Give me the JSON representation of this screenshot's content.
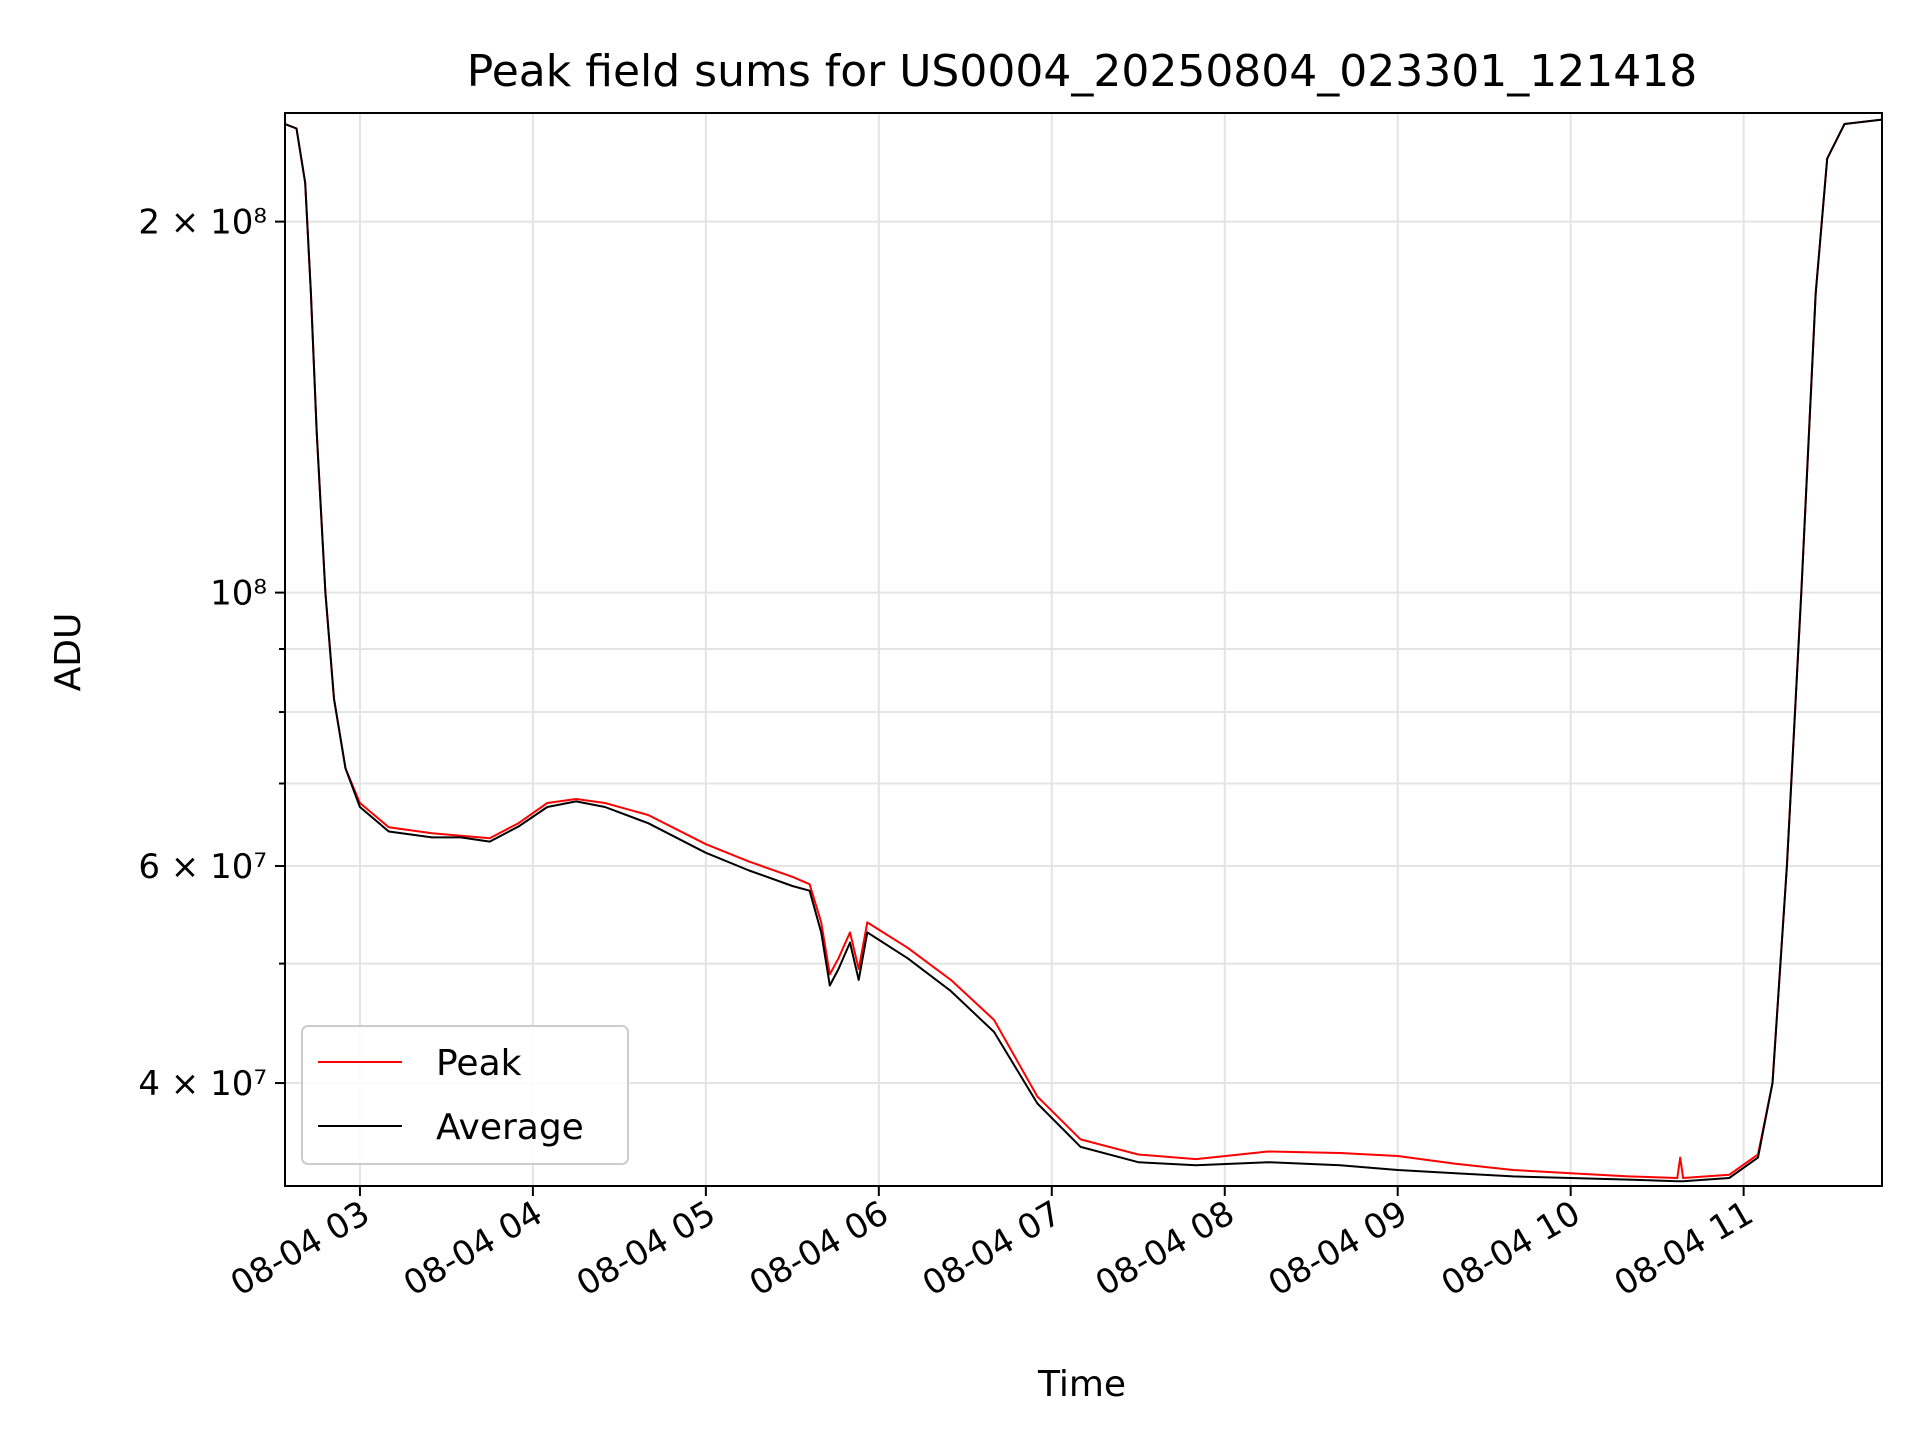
{
  "chart_data": {
    "type": "line",
    "title": "Peak field sums for US0004_20250804_023301_121418",
    "xlabel": "Time",
    "ylabel": "ADU",
    "y_scale": "log",
    "ylim": [
      33000000,
      245000000
    ],
    "xlim": [
      "2025-08-04 02:34",
      "2025-08-04 11:48"
    ],
    "x_ticks": [
      "2025-08-04 03:00",
      "2025-08-04 04:00",
      "2025-08-04 05:00",
      "2025-08-04 06:00",
      "2025-08-04 07:00",
      "2025-08-04 08:00",
      "2025-08-04 09:00",
      "2025-08-04 10:00",
      "2025-08-04 11:00"
    ],
    "x_tick_labels": [
      "08-04 03",
      "08-04 04",
      "08-04 05",
      "08-04 06",
      "08-04 07",
      "08-04 08",
      "08-04 09",
      "08-04 10",
      "08-04 11"
    ],
    "y_major_ticks": [
      {
        "value": 40000000,
        "label": "4 × 10⁷"
      },
      {
        "value": 60000000,
        "label": "6 × 10⁷"
      },
      {
        "value": 100000000,
        "label": "10⁸"
      },
      {
        "value": 200000000,
        "label": "2 × 10⁸"
      }
    ],
    "y_minor_ticks": [
      50000000,
      70000000,
      80000000,
      90000000
    ],
    "grid": true,
    "legend_position": "lower-left",
    "series": [
      {
        "name": "Peak",
        "color": "#ff0000",
        "points": [
          [
            "2025-08-04 02:34",
            240000000
          ],
          [
            "2025-08-04 02:38",
            238000000
          ],
          [
            "2025-08-04 02:41",
            215000000
          ],
          [
            "2025-08-04 02:43",
            175000000
          ],
          [
            "2025-08-04 02:45",
            135000000
          ],
          [
            "2025-08-04 02:48",
            100000000
          ],
          [
            "2025-08-04 02:51",
            82000000
          ],
          [
            "2025-08-04 02:55",
            72000000
          ],
          [
            "2025-08-04 03:00",
            67500000
          ],
          [
            "2025-08-04 03:10",
            64500000
          ],
          [
            "2025-08-04 03:25",
            63800000
          ],
          [
            "2025-08-04 03:35",
            63500000
          ],
          [
            "2025-08-04 03:45",
            63200000
          ],
          [
            "2025-08-04 03:55",
            65000000
          ],
          [
            "2025-08-04 04:05",
            67500000
          ],
          [
            "2025-08-04 04:15",
            68000000
          ],
          [
            "2025-08-04 04:25",
            67500000
          ],
          [
            "2025-08-04 04:40",
            66000000
          ],
          [
            "2025-08-04 05:00",
            62500000
          ],
          [
            "2025-08-04 05:15",
            60500000
          ],
          [
            "2025-08-04 05:30",
            58800000
          ],
          [
            "2025-08-04 05:36",
            58000000
          ],
          [
            "2025-08-04 05:40",
            54000000
          ],
          [
            "2025-08-04 05:43",
            49000000
          ],
          [
            "2025-08-04 05:46",
            50500000
          ],
          [
            "2025-08-04 05:50",
            53000000
          ],
          [
            "2025-08-04 05:53",
            49500000
          ],
          [
            "2025-08-04 05:56",
            54000000
          ],
          [
            "2025-08-04 06:10",
            51500000
          ],
          [
            "2025-08-04 06:25",
            48500000
          ],
          [
            "2025-08-04 06:40",
            45000000
          ],
          [
            "2025-08-04 06:55",
            39000000
          ],
          [
            "2025-08-04 07:10",
            36000000
          ],
          [
            "2025-08-04 07:30",
            35000000
          ],
          [
            "2025-08-04 07:50",
            34700000
          ],
          [
            "2025-08-04 08:15",
            35200000
          ],
          [
            "2025-08-04 08:40",
            35100000
          ],
          [
            "2025-08-04 09:00",
            34900000
          ],
          [
            "2025-08-04 09:20",
            34400000
          ],
          [
            "2025-08-04 09:40",
            34000000
          ],
          [
            "2025-08-04 10:00",
            33800000
          ],
          [
            "2025-08-04 10:20",
            33600000
          ],
          [
            "2025-08-04 10:37",
            33500000
          ],
          [
            "2025-08-04 10:38",
            34800000
          ],
          [
            "2025-08-04 10:39",
            33500000
          ],
          [
            "2025-08-04 10:55",
            33700000
          ],
          [
            "2025-08-04 11:05",
            35000000
          ],
          [
            "2025-08-04 11:10",
            40000000
          ],
          [
            "2025-08-04 11:15",
            60000000
          ],
          [
            "2025-08-04 11:20",
            100000000
          ],
          [
            "2025-08-04 11:25",
            175000000
          ],
          [
            "2025-08-04 11:29",
            225000000
          ],
          [
            "2025-08-04 11:35",
            240000000
          ],
          [
            "2025-08-04 11:48",
            242000000
          ]
        ]
      },
      {
        "name": "Average",
        "color": "#000000",
        "points": [
          [
            "2025-08-04 02:34",
            240000000
          ],
          [
            "2025-08-04 02:38",
            238000000
          ],
          [
            "2025-08-04 02:41",
            215000000
          ],
          [
            "2025-08-04 02:43",
            175000000
          ],
          [
            "2025-08-04 02:45",
            135000000
          ],
          [
            "2025-08-04 02:48",
            100000000
          ],
          [
            "2025-08-04 02:51",
            82000000
          ],
          [
            "2025-08-04 02:55",
            72000000
          ],
          [
            "2025-08-04 03:00",
            67000000
          ],
          [
            "2025-08-04 03:10",
            64000000
          ],
          [
            "2025-08-04 03:25",
            63300000
          ],
          [
            "2025-08-04 03:35",
            63300000
          ],
          [
            "2025-08-04 03:45",
            62800000
          ],
          [
            "2025-08-04 03:55",
            64600000
          ],
          [
            "2025-08-04 04:05",
            67000000
          ],
          [
            "2025-08-04 04:15",
            67700000
          ],
          [
            "2025-08-04 04:25",
            67000000
          ],
          [
            "2025-08-04 04:40",
            65000000
          ],
          [
            "2025-08-04 05:00",
            61500000
          ],
          [
            "2025-08-04 05:15",
            59500000
          ],
          [
            "2025-08-04 05:30",
            57800000
          ],
          [
            "2025-08-04 05:36",
            57300000
          ],
          [
            "2025-08-04 05:40",
            53000000
          ],
          [
            "2025-08-04 05:43",
            48000000
          ],
          [
            "2025-08-04 05:46",
            49500000
          ],
          [
            "2025-08-04 05:50",
            52000000
          ],
          [
            "2025-08-04 05:53",
            48500000
          ],
          [
            "2025-08-04 05:56",
            53000000
          ],
          [
            "2025-08-04 06:10",
            50500000
          ],
          [
            "2025-08-04 06:25",
            47500000
          ],
          [
            "2025-08-04 06:40",
            44000000
          ],
          [
            "2025-08-04 06:55",
            38500000
          ],
          [
            "2025-08-04 07:10",
            35500000
          ],
          [
            "2025-08-04 07:30",
            34500000
          ],
          [
            "2025-08-04 07:50",
            34300000
          ],
          [
            "2025-08-04 08:15",
            34500000
          ],
          [
            "2025-08-04 08:40",
            34300000
          ],
          [
            "2025-08-04 09:00",
            34000000
          ],
          [
            "2025-08-04 09:20",
            33800000
          ],
          [
            "2025-08-04 09:40",
            33600000
          ],
          [
            "2025-08-04 10:00",
            33500000
          ],
          [
            "2025-08-04 10:20",
            33400000
          ],
          [
            "2025-08-04 10:37",
            33300000
          ],
          [
            "2025-08-04 10:38",
            33300000
          ],
          [
            "2025-08-04 10:39",
            33300000
          ],
          [
            "2025-08-04 10:55",
            33500000
          ],
          [
            "2025-08-04 11:05",
            34800000
          ],
          [
            "2025-08-04 11:10",
            40000000
          ],
          [
            "2025-08-04 11:15",
            60000000
          ],
          [
            "2025-08-04 11:20",
            100000000
          ],
          [
            "2025-08-04 11:25",
            175000000
          ],
          [
            "2025-08-04 11:29",
            225000000
          ],
          [
            "2025-08-04 11:35",
            240000000
          ],
          [
            "2025-08-04 11:48",
            242000000
          ]
        ]
      }
    ]
  }
}
